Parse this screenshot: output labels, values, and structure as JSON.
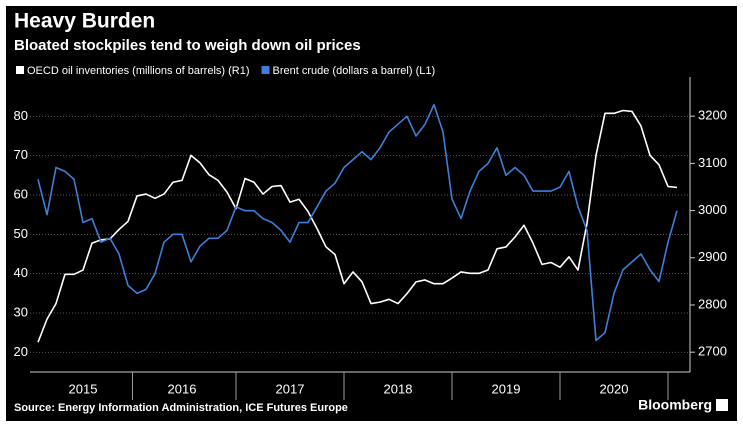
{
  "chart_data": {
    "type": "line",
    "title": "Heavy Burden",
    "subtitle": "Bloated stockpiles tend to weigh down oil prices",
    "source": "Source: Energy Information Administration, ICE Futures Europe",
    "credit": "Bloomberg",
    "categories": [
      null,
      null,
      null,
      null,
      null,
      "2015",
      null,
      null,
      null,
      null,
      null,
      null,
      null,
      null,
      null,
      null,
      "2016",
      null,
      null,
      null,
      null,
      null,
      null,
      null,
      null,
      null,
      null,
      null,
      "2017",
      null,
      null,
      null,
      null,
      null,
      null,
      null,
      null,
      null,
      null,
      null,
      "2018",
      null,
      null,
      null,
      null,
      null,
      null,
      null,
      null,
      null,
      null,
      null,
      "2019",
      null,
      null,
      null,
      null,
      null,
      null,
      null,
      null,
      null,
      null,
      null,
      "2020",
      null,
      null,
      null,
      null,
      null,
      null,
      null
    ],
    "series": [
      {
        "name": "OECD oil inventories (millions of barrels) (R1)",
        "color": "#ffffff",
        "axis": "y2",
        "values": [
          2721,
          2770,
          2803,
          2865,
          2865,
          2874,
          2931,
          2938,
          2940,
          2960,
          2977,
          3031,
          3035,
          3026,
          3035,
          3060,
          3064,
          3117,
          3101,
          3076,
          3064,
          3039,
          3004,
          3068,
          3060,
          3035,
          3051,
          3053,
          3018,
          3024,
          2998,
          2962,
          2923,
          2907,
          2845,
          2870,
          2849,
          2803,
          2806,
          2812,
          2803,
          2824,
          2849,
          2853,
          2845,
          2845,
          2857,
          2870,
          2867,
          2867,
          2874,
          2919,
          2923,
          2944,
          2969,
          2931,
          2886,
          2890,
          2880,
          2902,
          2874,
          2973,
          3117,
          3206,
          3206,
          3212,
          3210,
          3179,
          3117,
          3097,
          3051,
          3049
        ]
      },
      {
        "name": "Brent crude (dollars a barrel) (L1)",
        "color": "#3d7fd9",
        "axis": "y",
        "values": [
          64,
          55,
          67,
          66,
          64,
          53,
          54,
          48,
          49,
          45,
          37,
          35,
          36,
          40,
          48,
          50,
          50,
          43,
          47,
          49,
          49,
          51,
          57,
          56,
          56,
          54,
          53,
          51,
          48,
          53,
          53,
          57,
          61,
          63,
          67,
          69,
          71,
          69,
          72,
          76,
          78,
          80,
          75,
          78,
          83,
          76,
          59,
          54,
          61,
          66,
          68,
          72,
          65,
          67,
          65,
          61,
          61,
          61,
          62,
          66,
          57,
          51,
          23,
          25,
          35,
          41,
          43,
          45,
          41,
          38,
          48,
          56
        ]
      }
    ],
    "ylim": [
      15,
      90
    ],
    "yticks": [
      20,
      30,
      40,
      50,
      60,
      70,
      80
    ],
    "y2lim": [
      2658,
      3283
    ],
    "y2ticks": [
      2700,
      2800,
      2900,
      3000,
      3100,
      3200
    ],
    "grid": true
  }
}
